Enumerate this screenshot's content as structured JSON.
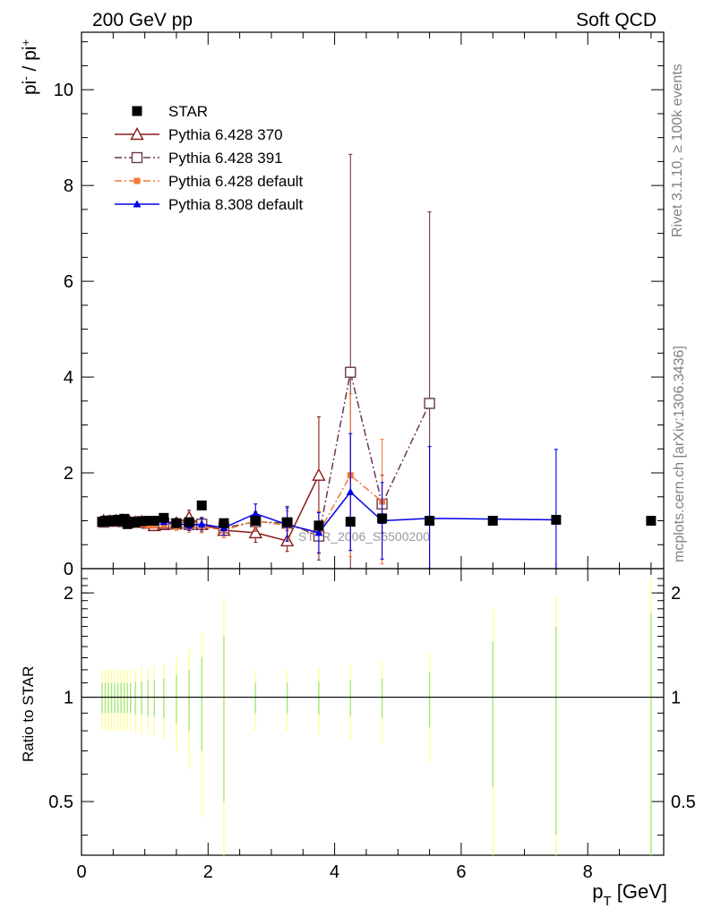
{
  "header": {
    "left_label": "200 GeV pp",
    "right_label": "Soft QCD"
  },
  "side_labels": {
    "rivet": "Rivet 3.1.10, ≥ 100k events",
    "mcplots": "mcplots.cern.ch [arXiv:1306.3436]"
  },
  "watermark": "STAR_2006_S6500200",
  "chart_data": [
    {
      "type": "scatter",
      "panel": "main",
      "ylabel": "pi- / pi+",
      "xlim": [
        0,
        9.2
      ],
      "ylim": [
        0,
        11.2
      ],
      "y_ticks": [
        0,
        2,
        4,
        6,
        8,
        10
      ],
      "legend_position": "top-left",
      "series": [
        {
          "name": "STAR",
          "color": "#000000",
          "marker": "square-filled",
          "line": "none",
          "x": [
            0.325,
            0.375,
            0.425,
            0.475,
            0.525,
            0.575,
            0.625,
            0.675,
            0.725,
            0.775,
            0.85,
            0.95,
            1.05,
            1.15,
            1.3,
            1.5,
            1.7,
            1.9,
            2.25,
            2.75,
            3.25,
            3.75,
            4.25,
            4.75,
            5.5,
            6.5,
            7.5,
            9.0
          ],
          "y": [
            0.98,
            1.0,
            0.99,
            1.01,
            0.99,
            1.02,
            1.0,
            1.04,
            0.93,
            0.98,
            0.96,
            0.99,
            1.0,
            1.0,
            1.06,
            0.95,
            0.97,
            1.32,
            0.95,
            1.0,
            0.97,
            0.9,
            0.98,
            1.05,
            1.0,
            1.0,
            1.02,
            1.0
          ]
        },
        {
          "name": "Pythia 6.428 370",
          "color": "#8b1a1a",
          "marker": "triangle-open",
          "line": "solid",
          "x": [
            0.35,
            0.45,
            0.55,
            0.65,
            0.75,
            0.85,
            0.95,
            1.05,
            1.15,
            1.3,
            1.5,
            1.7,
            1.9,
            2.25,
            2.75,
            3.25,
            3.75
          ],
          "y": [
            1.0,
            0.99,
            1.0,
            1.01,
            1.0,
            0.97,
            0.98,
            0.95,
            0.9,
            0.92,
            0.95,
            1.07,
            0.92,
            0.8,
            0.75,
            0.58,
            1.95
          ],
          "err": [
            0.03,
            0.03,
            0.03,
            0.03,
            0.03,
            0.04,
            0.04,
            0.05,
            0.06,
            0.07,
            0.1,
            0.15,
            0.15,
            0.15,
            0.2,
            0.22,
            1.22
          ]
        },
        {
          "name": "Pythia 6.428 391",
          "color": "#6b3a48",
          "marker": "square-open",
          "line": "dash-dot",
          "x": [
            0.35,
            0.45,
            0.55,
            0.65,
            0.75,
            0.85,
            0.95,
            1.05,
            1.15,
            1.3,
            1.5,
            1.7,
            1.9,
            2.25,
            2.75,
            3.25,
            3.75,
            4.25,
            4.75,
            5.5
          ],
          "y": [
            0.97,
            0.99,
            1.0,
            0.98,
            0.96,
            0.97,
            0.98,
            0.97,
            0.96,
            0.95,
            0.93,
            0.92,
            0.93,
            0.85,
            0.98,
            0.95,
            0.68,
            4.1,
            1.35,
            3.45
          ],
          "err": [
            0.03,
            0.03,
            0.03,
            0.03,
            0.03,
            0.04,
            0.04,
            0.05,
            0.05,
            0.06,
            0.08,
            0.1,
            0.12,
            0.15,
            0.2,
            0.35,
            0.5,
            4.55,
            0.6,
            4.0
          ]
        },
        {
          "name": "Pythia 6.428 default",
          "color": "#f5793a",
          "marker": "square-filled",
          "line": "dash-dot",
          "x": [
            0.35,
            0.45,
            0.55,
            0.65,
            0.75,
            0.85,
            0.95,
            1.05,
            1.15,
            1.3,
            1.5,
            1.7,
            1.9,
            2.25,
            2.75,
            3.25,
            3.75,
            4.25,
            4.75
          ],
          "y": [
            0.98,
            0.96,
            0.95,
            0.94,
            0.95,
            0.92,
            0.93,
            0.91,
            0.9,
            0.92,
            0.88,
            0.86,
            0.87,
            0.8,
            1.0,
            0.9,
            0.75,
            1.95,
            1.4
          ],
          "err": [
            0.03,
            0.03,
            0.03,
            0.03,
            0.03,
            0.04,
            0.04,
            0.05,
            0.05,
            0.06,
            0.08,
            0.1,
            0.12,
            0.15,
            0.2,
            0.3,
            0.45,
            1.7,
            1.3
          ]
        },
        {
          "name": "Pythia 8.308 default",
          "color": "#0000e6",
          "marker": "triangle-filled",
          "line": "solid",
          "x": [
            0.35,
            0.45,
            0.55,
            0.65,
            0.75,
            0.85,
            0.95,
            1.05,
            1.15,
            1.3,
            1.5,
            1.7,
            1.9,
            2.25,
            2.75,
            3.25,
            3.75,
            4.25,
            4.75,
            5.5,
            7.5
          ],
          "y": [
            0.98,
            0.97,
            0.96,
            0.95,
            0.98,
            0.97,
            0.99,
            1.0,
            1.0,
            0.98,
            0.95,
            0.9,
            0.93,
            0.85,
            1.15,
            0.92,
            0.75,
            1.6,
            1.0,
            1.05,
            1.02
          ],
          "err": [
            0.03,
            0.03,
            0.03,
            0.03,
            0.03,
            0.04,
            0.04,
            0.05,
            0.05,
            0.06,
            0.08,
            0.1,
            0.12,
            0.15,
            0.2,
            0.35,
            0.42,
            1.22,
            0.8,
            1.5,
            1.47
          ]
        }
      ]
    },
    {
      "type": "scatter",
      "panel": "ratio",
      "xlabel": "p_T [GeV]",
      "ylabel": "Ratio to STAR",
      "xlim": [
        0,
        9.2
      ],
      "ylim": [
        0.35,
        2.35
      ],
      "y_scale": "log",
      "x_ticks": [
        0,
        2,
        4,
        6,
        8
      ],
      "y_ticks": [
        0.5,
        1,
        2
      ],
      "reference_line": 1,
      "band_colors": [
        "#ffff99",
        "#a8e87c"
      ],
      "bands": {
        "x": [
          0.325,
          0.375,
          0.425,
          0.475,
          0.525,
          0.575,
          0.625,
          0.675,
          0.725,
          0.775,
          0.85,
          0.95,
          1.05,
          1.15,
          1.3,
          1.5,
          1.7,
          1.9,
          2.25,
          2.75,
          3.25,
          3.75,
          4.25,
          4.75,
          5.5,
          6.5,
          7.5,
          9.0
        ],
        "outer": [
          0.2,
          0.2,
          0.2,
          0.2,
          0.2,
          0.2,
          0.2,
          0.2,
          0.2,
          0.2,
          0.21,
          0.22,
          0.22,
          0.23,
          0.25,
          0.3,
          0.38,
          0.55,
          0.95,
          0.2,
          0.2,
          0.22,
          0.25,
          0.27,
          0.35,
          0.8,
          0.95,
          1.2
        ],
        "inner": [
          0.1,
          0.1,
          0.1,
          0.1,
          0.1,
          0.1,
          0.1,
          0.1,
          0.1,
          0.1,
          0.11,
          0.11,
          0.12,
          0.12,
          0.13,
          0.16,
          0.2,
          0.3,
          0.5,
          0.1,
          0.1,
          0.11,
          0.12,
          0.13,
          0.18,
          0.45,
          0.6,
          0.75
        ]
      }
    }
  ]
}
